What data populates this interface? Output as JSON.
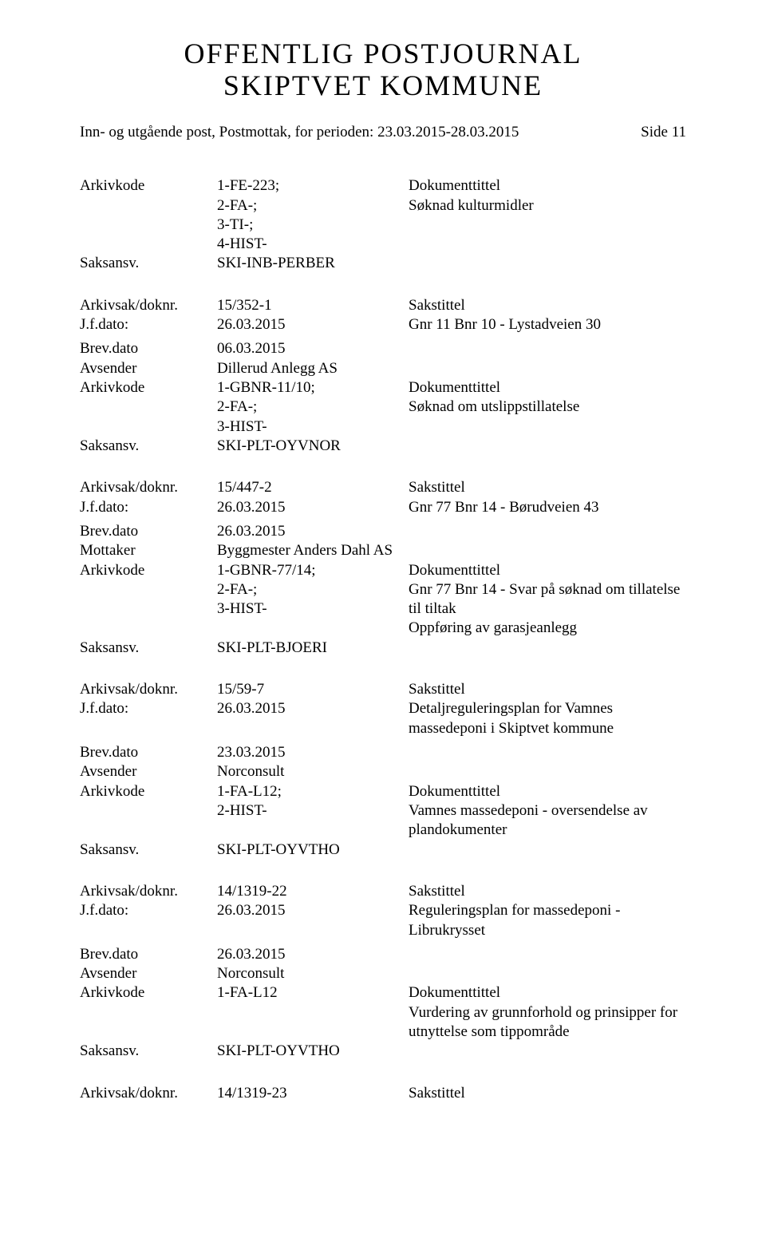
{
  "header": {
    "title_line1": "OFFENTLIG POSTJOURNAL",
    "title_line2": "SKIPTVET KOMMUNE",
    "subtitle": "Inn- og utgående post, Postmottak, for perioden: 23.03.2015-28.03.2015",
    "page_side": "Side 11"
  },
  "labels": {
    "arkivkode": "Arkivkode",
    "saksansv": "Saksansv.",
    "arkivsak": "Arkivsak/doknr.",
    "jfdato": "J.f.dato:",
    "brevdato": "Brev.dato",
    "avsender": "Avsender",
    "mottaker": "Mottaker",
    "dokumenttittel": "Dokumenttittel",
    "sakstittel": "Sakstittel"
  },
  "b0": {
    "arkivkode": "1-FE-223;\n2-FA-;\n3-TI-;\n4-HIST-",
    "saksansv": "SKI-INB-PERBER",
    "dok": "Søknad kulturmidler"
  },
  "e1": {
    "sak": "15/352-1",
    "jf": "26.03.2015",
    "sakstittel": "Gnr 11 Bnr 10 - Lystadveien 30",
    "brevdato": "06.03.2015",
    "part": "Dillerud Anlegg AS",
    "arkivkode": "1-GBNR-11/10;\n2-FA-;\n3-HIST-",
    "saksansv": "SKI-PLT-OYVNOR",
    "dok": "Søknad om utslippstillatelse"
  },
  "e2": {
    "sak": "15/447-2",
    "jf": "26.03.2015",
    "sakstittel": "Gnr 77 Bnr 14 - Børudveien 43",
    "brevdato": "26.03.2015",
    "part": "Byggmester Anders Dahl AS",
    "arkivkode": "1-GBNR-77/14;\n2-FA-;\n3-HIST-",
    "saksansv": "SKI-PLT-BJOERI",
    "dok": "Gnr 77 Bnr 14 - Svar på søknad om tillatelse til tiltak\nOppføring av garasjeanlegg"
  },
  "e3": {
    "sak": "15/59-7",
    "jf": "26.03.2015",
    "sakstittel": "Detaljreguleringsplan for Vamnes massedeponi i Skiptvet kommune",
    "brevdato": "23.03.2015",
    "part": "Norconsult",
    "arkivkode": "1-FA-L12;\n2-HIST-",
    "saksansv": "SKI-PLT-OYVTHO",
    "dok": "Vamnes massedeponi - oversendelse av plandokumenter"
  },
  "e4": {
    "sak": "14/1319-22",
    "jf": "26.03.2015",
    "sakstittel": "Reguleringsplan for massedeponi  - Librukrysset",
    "brevdato": "26.03.2015",
    "part": "Norconsult",
    "arkivkode": "1-FA-L12",
    "saksansv": "SKI-PLT-OYVTHO",
    "dok": "Vurdering av grunnforhold og prinsipper for utnyttelse som tippområde"
  },
  "e5": {
    "sak": "14/1319-23"
  }
}
